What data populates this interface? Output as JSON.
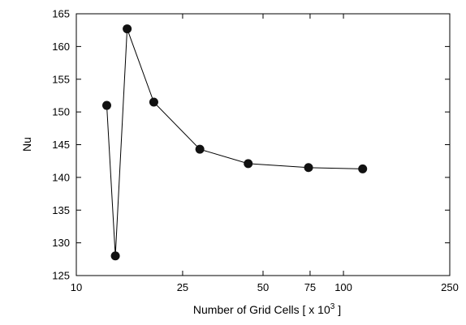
{
  "chart_data": {
    "type": "scatter",
    "title": "",
    "xlabel": "Number of Grid Cells [ x 10",
    "xlabel_superscript": "3",
    "xlabel_suffix": " ]",
    "ylabel": "Nu",
    "x_scale": "log",
    "xlim": [
      10,
      250
    ],
    "ylim": [
      125,
      165
    ],
    "x_ticks": [
      10,
      25,
      50,
      75,
      100,
      250
    ],
    "x_tick_labels": [
      "10",
      "25",
      "50",
      "75",
      "100",
      "250"
    ],
    "y_ticks": [
      125,
      130,
      135,
      140,
      145,
      150,
      155,
      160,
      165
    ],
    "y_tick_labels": [
      "125",
      "130",
      "135",
      "140",
      "145",
      "150",
      "155",
      "160",
      "165"
    ],
    "grid": false,
    "legend": "none",
    "marker_color": "#111111",
    "line_color": "#000000",
    "series": [
      {
        "x": [
          13,
          14,
          15.5,
          19.5,
          29,
          44,
          74,
          118
        ],
        "y": [
          151,
          128,
          162.7,
          151.5,
          144.3,
          142.1,
          141.5,
          141.3
        ]
      }
    ]
  }
}
